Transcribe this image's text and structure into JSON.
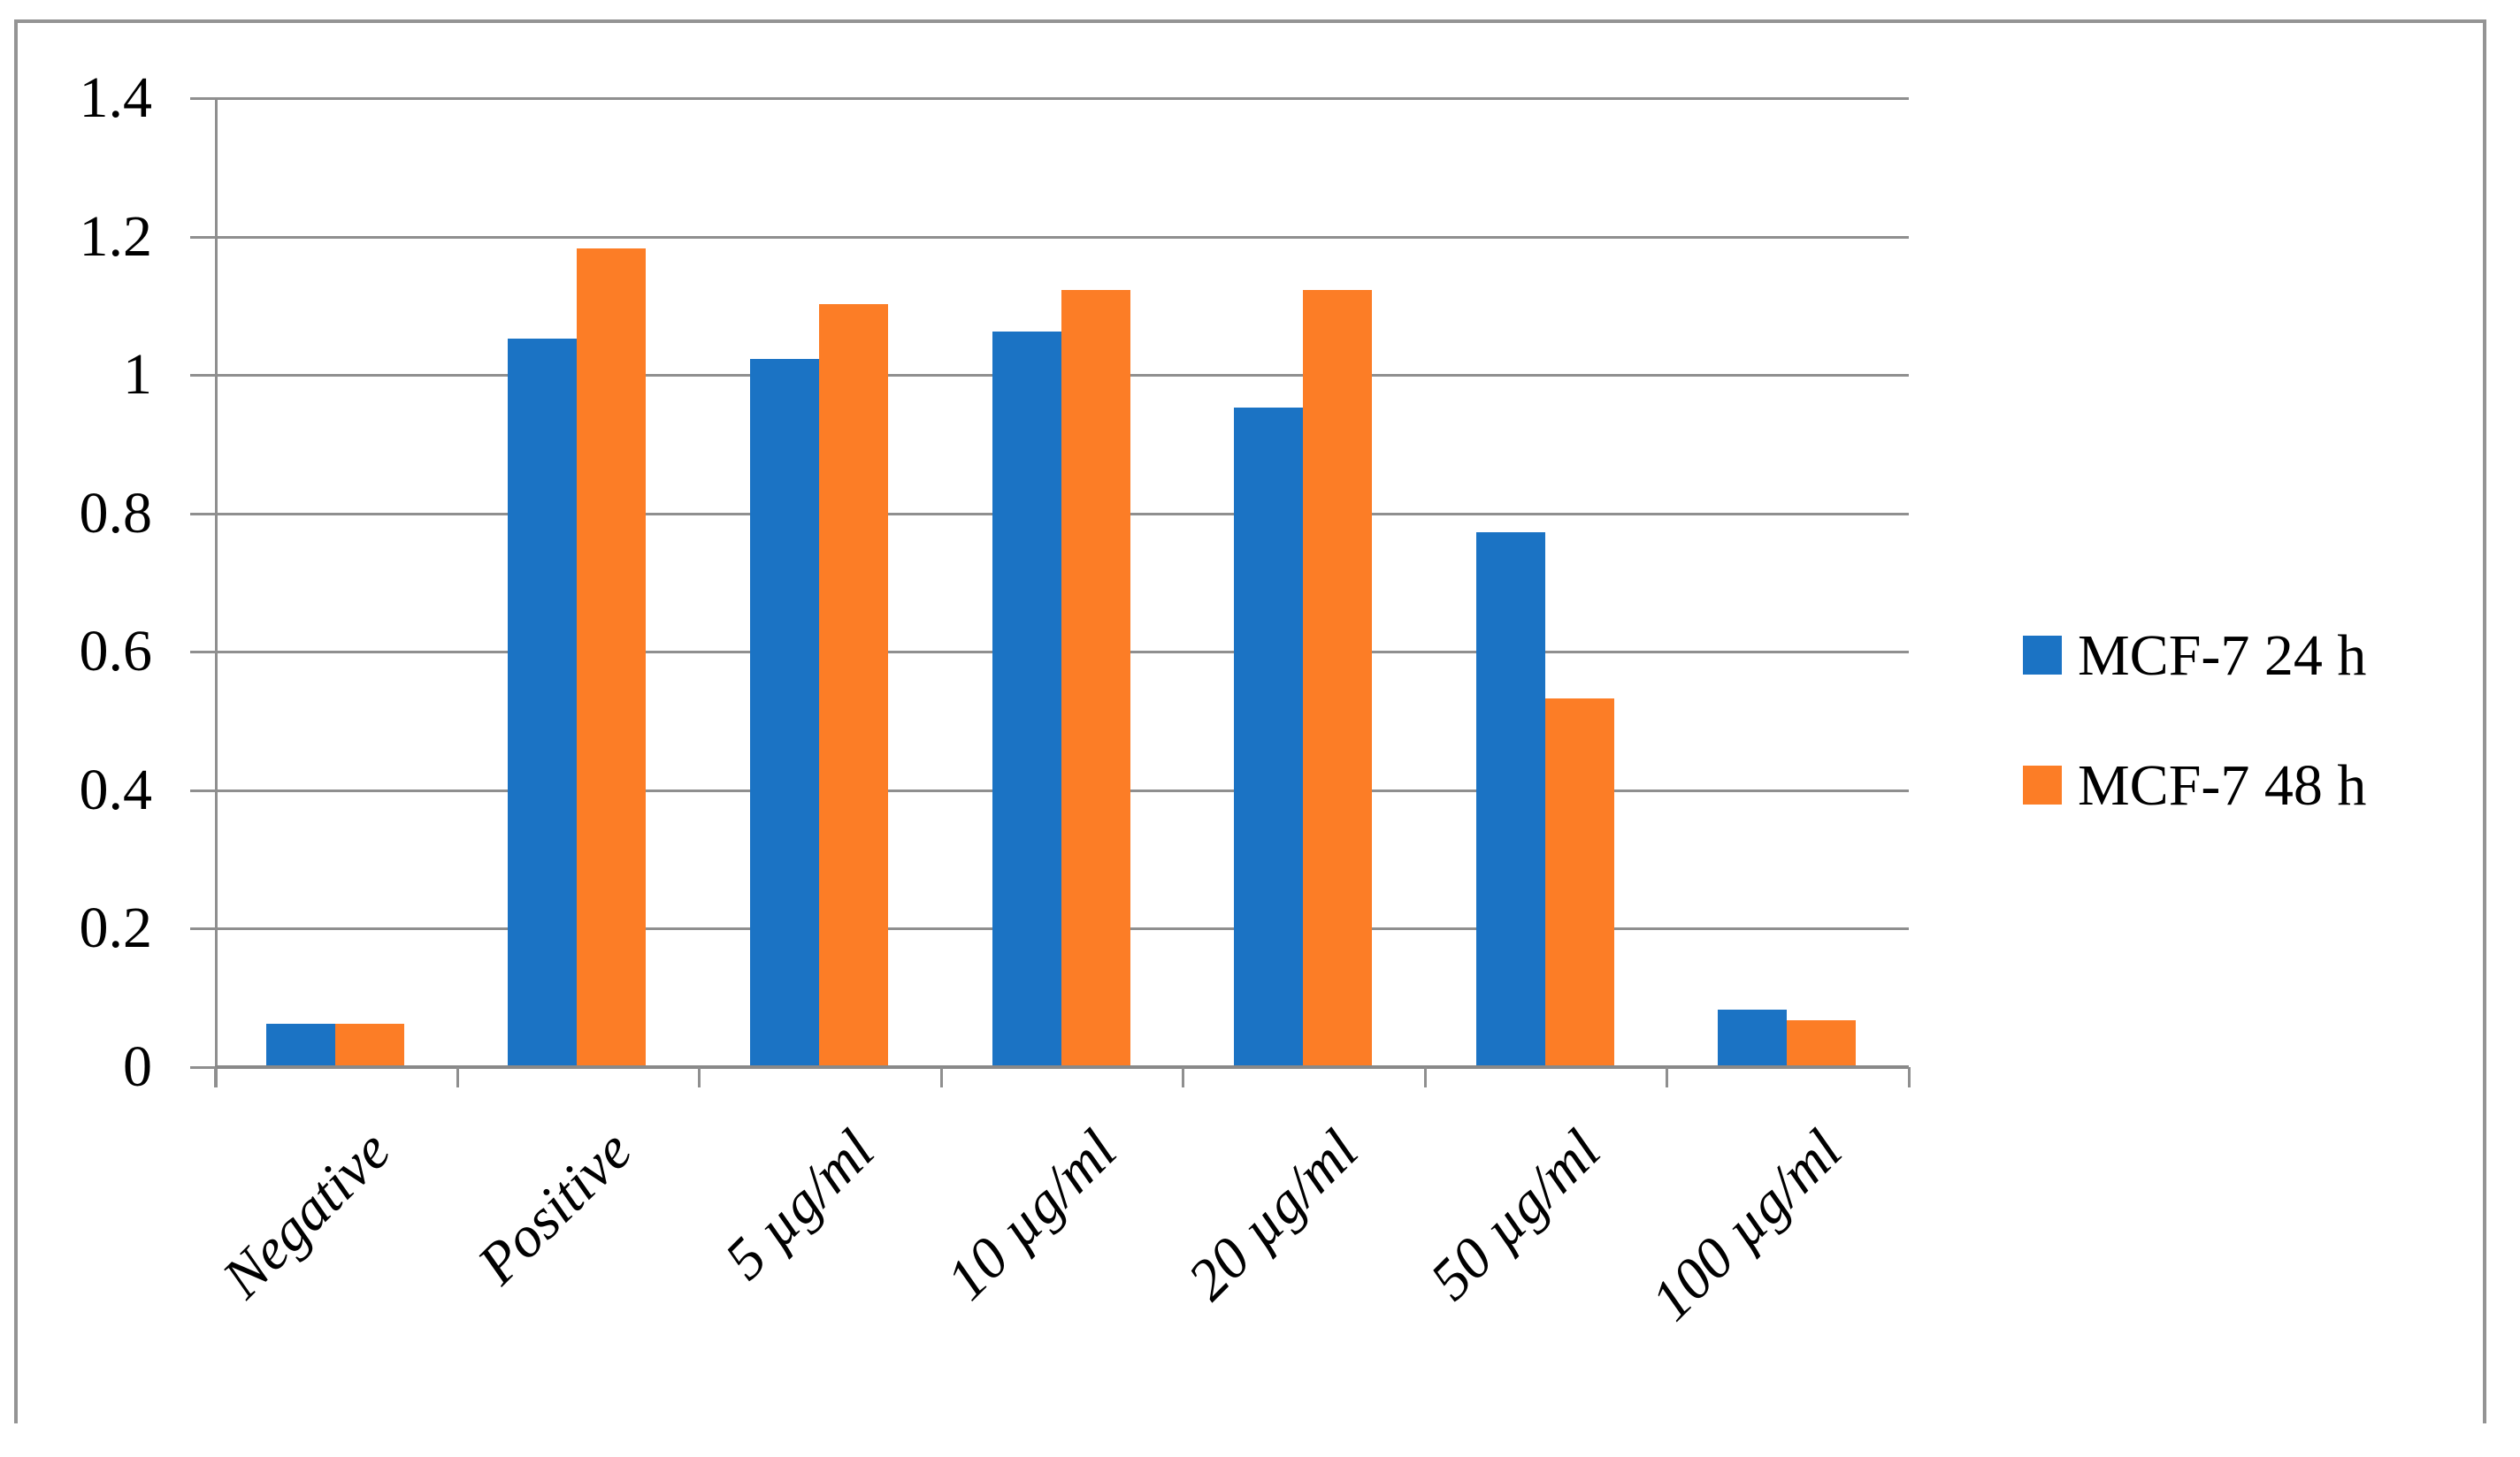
{
  "figure": {
    "background": "#FFFFFF",
    "border_color": "#949494",
    "grid_color": "#8F8F8F"
  },
  "legend": {
    "items": [
      {
        "label": "MCF-7 24 h",
        "color": "#1B73C4"
      },
      {
        "label": "MCF-7 48 h",
        "color": "#FC7D26"
      }
    ]
  },
  "chart_data": {
    "type": "bar",
    "title": "",
    "xlabel": "",
    "ylabel": "",
    "categories": [
      "Negative",
      "Positive",
      "5 µg/ml",
      "10 µg/ml",
      "20 µg/ml",
      "50 µg/ml",
      "100 µg/ml"
    ],
    "series": [
      {
        "name": "MCF-7 24 h",
        "color": "#1B73C4",
        "values": [
          0.06,
          1.05,
          1.02,
          1.06,
          0.95,
          0.77,
          0.08
        ]
      },
      {
        "name": "MCF-7 48 h",
        "color": "#FC7D26",
        "values": [
          0.06,
          1.18,
          1.1,
          1.12,
          1.12,
          0.53,
          0.065
        ]
      }
    ],
    "ylim": [
      0,
      1.4
    ],
    "yticks": [
      0,
      0.2,
      0.4,
      0.6,
      0.8,
      1,
      1.2,
      1.4
    ],
    "ytick_labels": [
      "0",
      "0.2",
      "0.4",
      "0.6",
      "0.8",
      "1",
      "1.2",
      "1.4"
    ],
    "grid": true,
    "legend_position": "right"
  }
}
